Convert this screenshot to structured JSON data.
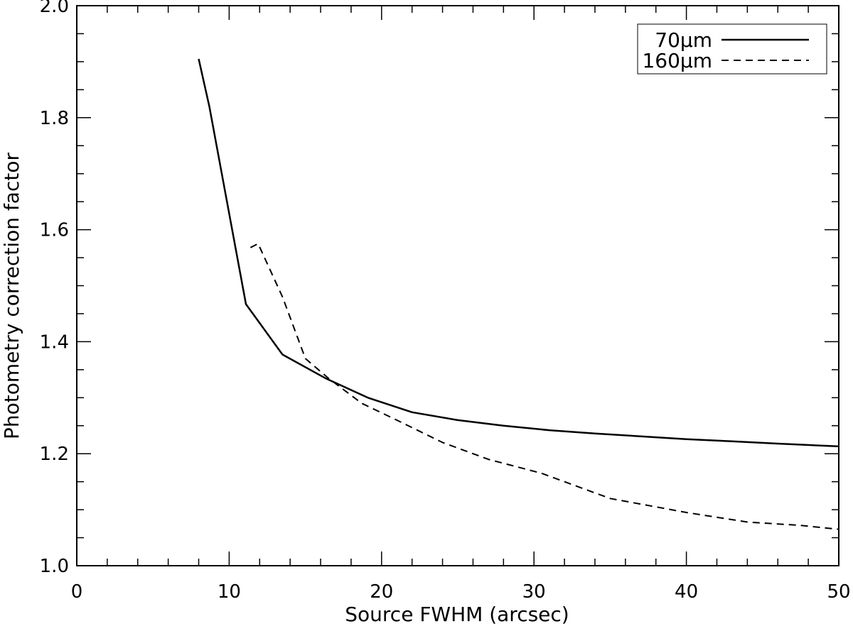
{
  "chart_data": {
    "type": "line",
    "xlabel": "Source FWHM (arcsec)",
    "ylabel": "Photometry correction factor",
    "xlim": [
      0,
      50
    ],
    "ylim": [
      1.0,
      2.0
    ],
    "x_ticks": [
      0,
      10,
      20,
      30,
      40,
      50
    ],
    "x_tick_labels": [
      "0",
      "10",
      "20",
      "30",
      "40",
      "50"
    ],
    "y_ticks": [
      1.0,
      1.2,
      1.4,
      1.6,
      1.8,
      2.0
    ],
    "y_tick_labels": [
      "1.0",
      "1.2",
      "1.4",
      "1.6",
      "1.8",
      "2.0"
    ],
    "grid": false,
    "legend_position": "top-right",
    "series": [
      {
        "name": "70µm",
        "style": "solid",
        "color": "#000000",
        "x": [
          8.0,
          8.7,
          11.1,
          13.5,
          16.3,
          19.1,
          22.0,
          25.0,
          28.0,
          31.0,
          34.0,
          37.0,
          40.0,
          43.0,
          46.0,
          50.0
        ],
        "y": [
          1.905,
          1.82,
          1.467,
          1.377,
          1.335,
          1.3,
          1.274,
          1.26,
          1.25,
          1.242,
          1.236,
          1.231,
          1.226,
          1.222,
          1.218,
          1.213
        ]
      },
      {
        "name": "160µm",
        "style": "dashed",
        "color": "#000000",
        "x": [
          11.4,
          11.9,
          13.5,
          15.0,
          16.5,
          18.7,
          21.0,
          24.0,
          27.0,
          30.5,
          35.0,
          40.0,
          44.0,
          47.5,
          50.0
        ],
        "y": [
          1.568,
          1.575,
          1.48,
          1.37,
          1.335,
          1.29,
          1.26,
          1.22,
          1.19,
          1.165,
          1.12,
          1.095,
          1.078,
          1.072,
          1.065
        ]
      }
    ]
  }
}
